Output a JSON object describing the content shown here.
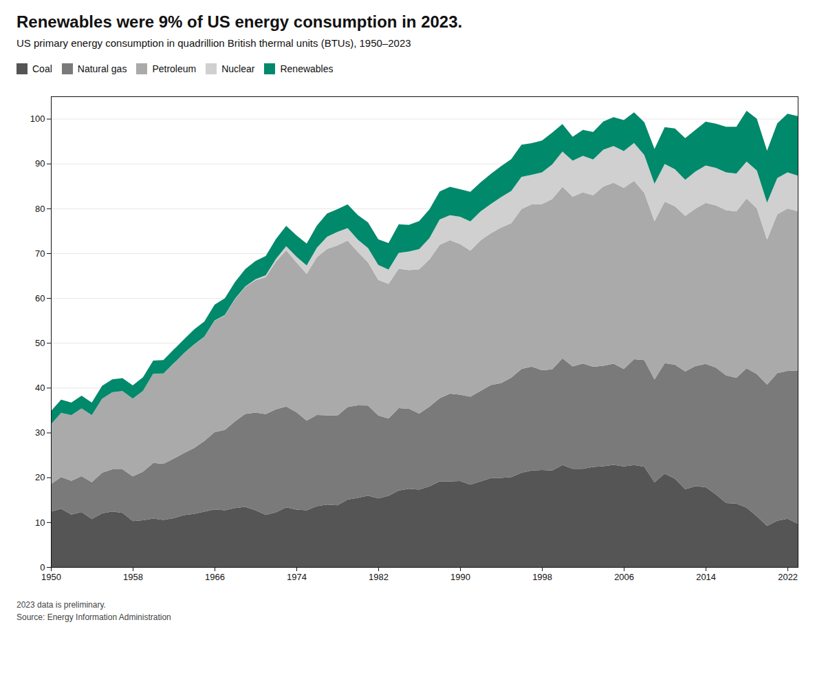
{
  "chart_data": {
    "type": "area",
    "title": "Renewables were 9% of US energy consumption in 2023.",
    "subtitle": "US primary energy consumption in quadrillion British thermal units (BTUs), 1950–2023",
    "annotations": [
      "2023 data is preliminary.",
      "Source: Energy Information Administration"
    ],
    "stacked": true,
    "grid": true,
    "legend": "top",
    "x": [
      1950,
      1951,
      1952,
      1953,
      1954,
      1955,
      1956,
      1957,
      1958,
      1959,
      1960,
      1961,
      1962,
      1963,
      1964,
      1965,
      1966,
      1967,
      1968,
      1969,
      1970,
      1971,
      1972,
      1973,
      1974,
      1975,
      1976,
      1977,
      1978,
      1979,
      1980,
      1981,
      1982,
      1983,
      1984,
      1985,
      1986,
      1987,
      1988,
      1989,
      1990,
      1991,
      1992,
      1993,
      1994,
      1995,
      1996,
      1997,
      1998,
      1999,
      2000,
      2001,
      2002,
      2003,
      2004,
      2005,
      2006,
      2007,
      2008,
      2009,
      2010,
      2011,
      2012,
      2013,
      2014,
      2015,
      2016,
      2017,
      2018,
      2019,
      2020,
      2021,
      2022,
      2023
    ],
    "series": [
      {
        "name": "Coal",
        "color": "#555555",
        "values": [
          12.34,
          13.0,
          11.69,
          12.29,
          10.71,
          11.97,
          12.38,
          12.07,
          10.24,
          10.44,
          10.82,
          10.5,
          10.9,
          11.6,
          11.84,
          12.36,
          12.86,
          12.65,
          13.18,
          13.45,
          12.66,
          11.64,
          12.19,
          13.3,
          12.8,
          12.66,
          13.58,
          13.92,
          13.77,
          15.04,
          15.42,
          15.91,
          15.32,
          15.89,
          17.07,
          17.48,
          17.26,
          18.01,
          19.1,
          19.1,
          19.17,
          18.39,
          19.12,
          19.84,
          19.88,
          20.09,
          21.04,
          21.53,
          21.66,
          21.52,
          22.74,
          21.91,
          21.9,
          22.32,
          22.47,
          22.8,
          22.46,
          22.74,
          22.39,
          18.88,
          20.82,
          19.69,
          17.34,
          18.03,
          17.85,
          16.2,
          14.27,
          14.18,
          13.25,
          11.34,
          9.18,
          10.34,
          10.79,
          9.66
        ]
      },
      {
        "name": "Natural gas",
        "color": "#7a7a7a",
        "values": [
          6.15,
          7.07,
          7.55,
          7.98,
          8.22,
          9.05,
          9.4,
          9.71,
          10.0,
          10.81,
          12.39,
          12.51,
          13.27,
          13.82,
          14.71,
          15.77,
          17.22,
          17.95,
          19.32,
          20.7,
          21.79,
          22.47,
          23.02,
          22.51,
          21.73,
          20.0,
          20.35,
          19.93,
          20.0,
          20.67,
          20.67,
          20.12,
          18.5,
          17.22,
          18.4,
          17.84,
          16.98,
          17.74,
          18.55,
          19.59,
          19.3,
          19.59,
          20.16,
          20.77,
          21.16,
          22.16,
          23.15,
          23.17,
          22.25,
          22.56,
          23.82,
          22.85,
          23.49,
          22.37,
          22.43,
          22.56,
          21.71,
          23.63,
          23.76,
          22.96,
          24.65,
          25.46,
          26.31,
          26.81,
          27.48,
          28.27,
          28.5,
          28.02,
          31.07,
          31.72,
          31.49,
          32.93,
          32.97,
          34.22
        ]
      },
      {
        "name": "Petroleum",
        "color": "#aaaaaa",
        "values": [
          13.32,
          14.33,
          14.66,
          15.11,
          14.97,
          16.52,
          17.2,
          17.47,
          17.33,
          18.05,
          19.92,
          20.15,
          21.23,
          22.27,
          23.07,
          23.22,
          24.85,
          25.53,
          27.24,
          28.31,
          29.52,
          30.56,
          32.95,
          34.84,
          33.45,
          32.73,
          35.17,
          37.12,
          37.96,
          37.12,
          34.2,
          31.93,
          30.23,
          30.05,
          31.06,
          30.92,
          32.2,
          32.87,
          34.22,
          34.21,
          33.55,
          32.58,
          33.58,
          33.84,
          34.66,
          34.48,
          35.67,
          36.2,
          37.06,
          38.0,
          38.26,
          37.86,
          38.18,
          38.26,
          40.0,
          40.39,
          40.41,
          39.79,
          37.31,
          35.3,
          36.03,
          35.31,
          34.68,
          35.11,
          35.91,
          36.21,
          36.82,
          37.14,
          37.87,
          36.96,
          32.37,
          35.4,
          36.22,
          35.54
        ]
      },
      {
        "name": "Nuclear",
        "color": "#d0d0d0",
        "values": [
          0.0,
          0.0,
          0.0,
          0.0,
          0.0,
          0.0,
          0.0,
          0.0,
          0.0,
          0.0,
          0.01,
          0.02,
          0.02,
          0.03,
          0.04,
          0.04,
          0.06,
          0.09,
          0.14,
          0.15,
          0.24,
          0.41,
          0.58,
          0.91,
          1.27,
          1.9,
          2.11,
          2.7,
          3.02,
          2.78,
          2.74,
          3.21,
          3.33,
          3.2,
          3.55,
          4.15,
          4.47,
          4.75,
          5.66,
          5.59,
          6.1,
          6.54,
          6.48,
          6.52,
          6.83,
          7.18,
          7.17,
          6.6,
          7.07,
          7.73,
          7.86,
          8.03,
          8.14,
          7.97,
          8.22,
          8.16,
          8.21,
          8.45,
          8.46,
          8.35,
          8.43,
          8.26,
          8.05,
          8.27,
          8.33,
          8.34,
          8.43,
          8.41,
          8.28,
          8.45,
          8.25,
          8.11,
          8.05,
          7.89
        ]
      },
      {
        "name": "Renewables",
        "color": "#00896A",
        "values": [
          2.97,
          2.93,
          2.8,
          2.83,
          2.79,
          2.88,
          2.88,
          2.88,
          2.97,
          3.04,
          2.93,
          2.97,
          3.07,
          3.07,
          3.35,
          3.38,
          3.54,
          3.72,
          3.72,
          3.87,
          4.08,
          4.29,
          4.44,
          4.53,
          4.74,
          4.87,
          4.98,
          5.19,
          5.07,
          5.28,
          5.49,
          5.69,
          5.73,
          5.89,
          6.37,
          5.95,
          6.28,
          6.42,
          6.25,
          6.32,
          6.16,
          6.6,
          6.48,
          6.72,
          6.89,
          7.08,
          7.17,
          7.08,
          7.08,
          7.09,
          6.16,
          5.34,
          5.79,
          6.15,
          6.27,
          6.44,
          6.91,
          6.82,
          7.34,
          7.75,
          8.2,
          9.11,
          9.3,
          9.29,
          9.78,
          9.89,
          10.17,
          10.47,
          11.32,
          11.55,
          11.59,
          12.19,
          13.09,
          13.27
        ]
      }
    ],
    "xlim": [
      1950,
      2023
    ],
    "xticks": [
      1950,
      1958,
      1966,
      1974,
      1982,
      1990,
      1998,
      2006,
      2014,
      2022
    ],
    "ylim": [
      0,
      105
    ],
    "yticks": [
      0,
      10,
      20,
      30,
      40,
      50,
      60,
      70,
      80,
      90,
      100
    ]
  }
}
